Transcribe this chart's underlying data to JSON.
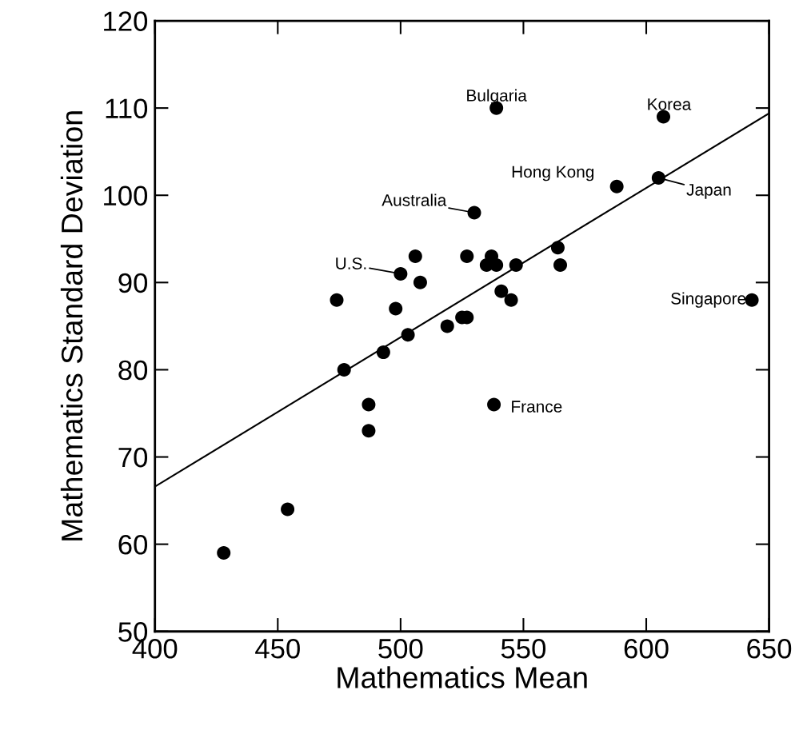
{
  "chart_data": {
    "type": "scatter",
    "xlabel": "Mathematics Mean",
    "ylabel": "Mathematics Standard Deviation",
    "xlim": [
      400,
      650
    ],
    "xticks": [
      400,
      450,
      500,
      550,
      600,
      650
    ],
    "ylim": [
      50,
      120
    ],
    "yticks": [
      50,
      60,
      70,
      80,
      90,
      100,
      110,
      120
    ],
    "grid": false,
    "legend": false,
    "series": [
      {
        "marker": "circle",
        "color": "#000000",
        "x": [
          428,
          454,
          474,
          477,
          487,
          487,
          493,
          498,
          500,
          503,
          506,
          508,
          519,
          525,
          527,
          527,
          530,
          535,
          537,
          538,
          539,
          539,
          541,
          545,
          547,
          564,
          565,
          588,
          605,
          607,
          643
        ],
        "values": [
          59,
          64,
          88,
          80,
          76,
          73,
          82,
          87,
          91,
          84,
          93,
          90,
          85,
          86,
          86,
          93,
          98,
          92,
          93,
          76,
          92,
          110,
          89,
          88,
          92,
          94,
          92,
          101,
          102,
          109,
          88
        ]
      },
      {
        "type": "line",
        "color": "#000000",
        "x": [
          400,
          650
        ],
        "values": [
          66.6,
          109.4
        ]
      }
    ],
    "annotations": [
      {
        "text": "Bulgaria",
        "x": 539,
        "y": 110
      },
      {
        "text": "Korea",
        "x": 607,
        "y": 109
      },
      {
        "text": "Hong Kong",
        "x": 588,
        "y": 101
      },
      {
        "text": "Japan",
        "x": 605,
        "y": 102
      },
      {
        "text": "Australia",
        "x": 530,
        "y": 98
      },
      {
        "text": "U.S.",
        "x": 500,
        "y": 91
      },
      {
        "text": "Singapore",
        "x": 643,
        "y": 88
      },
      {
        "text": "France",
        "x": 538,
        "y": 76
      }
    ]
  }
}
